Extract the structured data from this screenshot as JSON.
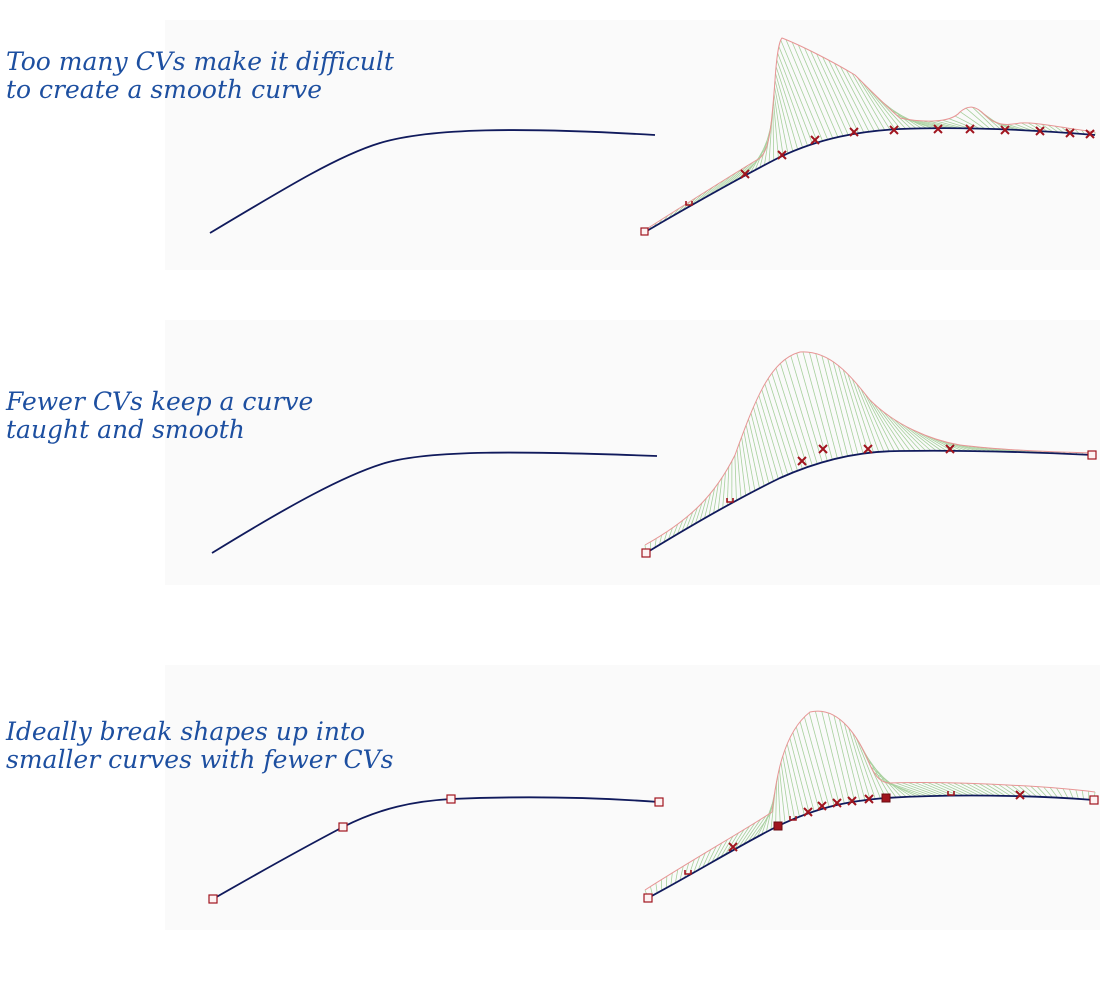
{
  "panels": [
    {
      "caption": [
        "Too many CVs make it difficult",
        "to create a smooth curve"
      ]
    },
    {
      "caption": [
        "Fewer CVs keep a curve",
        "taught and smooth"
      ]
    },
    {
      "caption": [
        "Ideally break shapes up into",
        "smaller curves with fewer CVs"
      ]
    }
  ],
  "colors": {
    "caption": "#1d4fa0",
    "curve": "#101a5c",
    "hull": "#e79595",
    "comb": "#a7d09d",
    "cv_marker": "#a0141e",
    "viewport_bg": "#fafafa"
  },
  "icons": [
    "cv-cross-icon",
    "cv-box-icon",
    "curve-start-u-icon"
  ]
}
